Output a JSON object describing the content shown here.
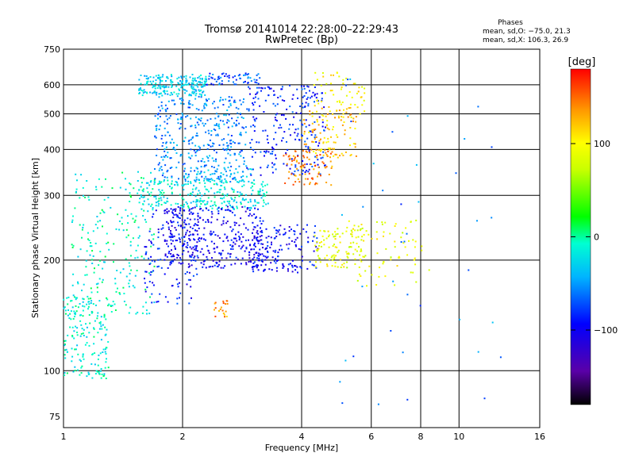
{
  "chart_data": {
    "type": "scatter",
    "title": "Tromsø 20141014 22:28:00–22:29:43",
    "subtitle": "RwPretec (Bp)",
    "xlabel": "Frequency [MHz]",
    "ylabel": "Stationary phase Virtual Height [km]",
    "xscale": "log",
    "yscale": "log",
    "xlim": [
      1,
      16
    ],
    "ylim": [
      70,
      750
    ],
    "xticks": [
      1,
      2,
      4,
      6,
      8,
      10,
      16
    ],
    "xtick_labels": [
      "1",
      "2",
      "4",
      "6",
      "8",
      "10",
      "16"
    ],
    "yticks": [
      75,
      100,
      200,
      300,
      400,
      500,
      600,
      750
    ],
    "ytick_labels": [
      "75",
      "100",
      "200",
      "300",
      "400",
      "500",
      "600",
      "750"
    ],
    "grid": true,
    "stats": {
      "heading": "Phases",
      "line1": "mean, sd,O: −75.0, 21.3",
      "line2": "mean, sd,X: 106.3, 26.9"
    },
    "colorbar": {
      "label": "[deg]",
      "min": -180,
      "max": 180,
      "ticks": [
        100,
        0,
        -100
      ],
      "tick_labels": [
        "100",
        "0",
        "−100"
      ],
      "colormap": "rainbow"
    },
    "series": [
      {
        "clusters": [
          {
            "x": [
              1.55,
              2.3
            ],
            "y": [
              560,
              640
            ],
            "phase": -30,
            "n": 220
          },
          {
            "x": [
              2.3,
              3.2
            ],
            "y": [
              600,
              650
            ],
            "phase": -70,
            "n": 60
          },
          {
            "x": [
              1.7,
              2.9
            ],
            "y": [
              330,
              560
            ],
            "phase": -55,
            "n": 380
          },
          {
            "x": [
              2.9,
              4.6
            ],
            "y": [
              340,
              600
            ],
            "phase": -85,
            "n": 240
          },
          {
            "x": [
              1.55,
              3.3
            ],
            "y": [
              275,
              330
            ],
            "phase": -20,
            "n": 280
          },
          {
            "x": [
              2.0,
              3.0
            ],
            "y": [
              325,
              360
            ],
            "phase": -40,
            "n": 60
          },
          {
            "x": [
              1.05,
              1.7
            ],
            "y": [
              140,
              350
            ],
            "phase": -10,
            "n": 230
          },
          {
            "x": [
              1.0,
              1.3
            ],
            "y": [
              95,
              160
            ],
            "phase": -15,
            "n": 170
          },
          {
            "x": [
              1.6,
              2.2
            ],
            "y": [
              150,
              280
            ],
            "phase": -90,
            "n": 120
          },
          {
            "x": [
              1.8,
              3.2
            ],
            "y": [
              190,
              280
            ],
            "phase": -100,
            "n": 380
          },
          {
            "x": [
              3.0,
              4.4
            ],
            "y": [
              185,
              250
            ],
            "phase": -95,
            "n": 150
          },
          {
            "x": [
              4.3,
              5.7
            ],
            "y": [
              190,
              245
            ],
            "phase": 90,
            "n": 100
          },
          {
            "x": [
              5.2,
              8.5
            ],
            "y": [
              170,
              260
            ],
            "phase": 90,
            "n": 80
          },
          {
            "x": [
              3.6,
              4.8
            ],
            "y": [
              320,
              400
            ],
            "phase": 140,
            "n": 90
          },
          {
            "x": [
              4.0,
              5.5
            ],
            "y": [
              380,
              520
            ],
            "phase": 120,
            "n": 110
          },
          {
            "x": [
              4.3,
              5.8
            ],
            "y": [
              480,
              650
            ],
            "phase": 100,
            "n": 60
          },
          {
            "x": [
              2.4,
              2.6
            ],
            "y": [
              140,
              155
            ],
            "phase": 140,
            "n": 20
          },
          {
            "x": [
              5.0,
              13.0
            ],
            "y": [
              80,
              650
            ],
            "phase": -60,
            "n": 40
          }
        ]
      }
    ]
  }
}
